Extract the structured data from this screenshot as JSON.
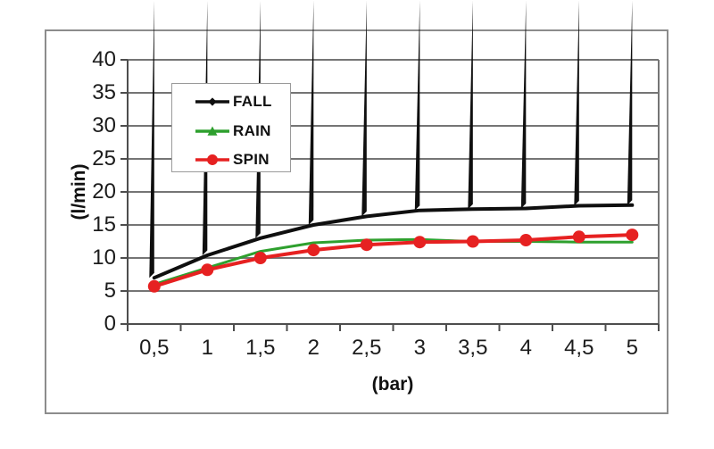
{
  "frame": {
    "border_color": "#8c8c8c",
    "background": "#ffffff"
  },
  "chart_data": {
    "type": "line",
    "title": "",
    "xlabel": "(bar)",
    "ylabel": "(l/min)",
    "x_tick_labels": [
      "0,5",
      "1",
      "1,5",
      "2",
      "2,5",
      "3",
      "3,5",
      "4",
      "4,5",
      "5"
    ],
    "x_values": [
      0.5,
      1,
      1.5,
      2,
      2.5,
      3,
      3.5,
      4,
      4.5,
      5
    ],
    "y_ticks": [
      0,
      5,
      10,
      15,
      20,
      25,
      30,
      35,
      40
    ],
    "ylim": [
      0,
      40
    ],
    "grid": "horizontal",
    "grid_color": "#757575",
    "axis_color": "#4d4d4d",
    "legend_position": "upper-left-inside",
    "series": [
      {
        "name": "FALL",
        "color": "#0f0f0f",
        "marker": "diamond",
        "values": [
          7,
          10.4,
          13,
          15,
          16.3,
          17.2,
          17.4,
          17.5,
          17.9,
          18
        ]
      },
      {
        "name": "RAIN",
        "color": "#2ea02e",
        "marker": "triangle",
        "values": [
          6,
          8.5,
          11,
          12.3,
          12.7,
          12.8,
          12.5,
          12.5,
          12.4,
          12.4
        ]
      },
      {
        "name": "SPIN",
        "color": "#e62121",
        "marker": "circle",
        "values": [
          5.7,
          8.2,
          10,
          11.2,
          12,
          12.4,
          12.5,
          12.7,
          13.2,
          13.5
        ]
      }
    ]
  }
}
